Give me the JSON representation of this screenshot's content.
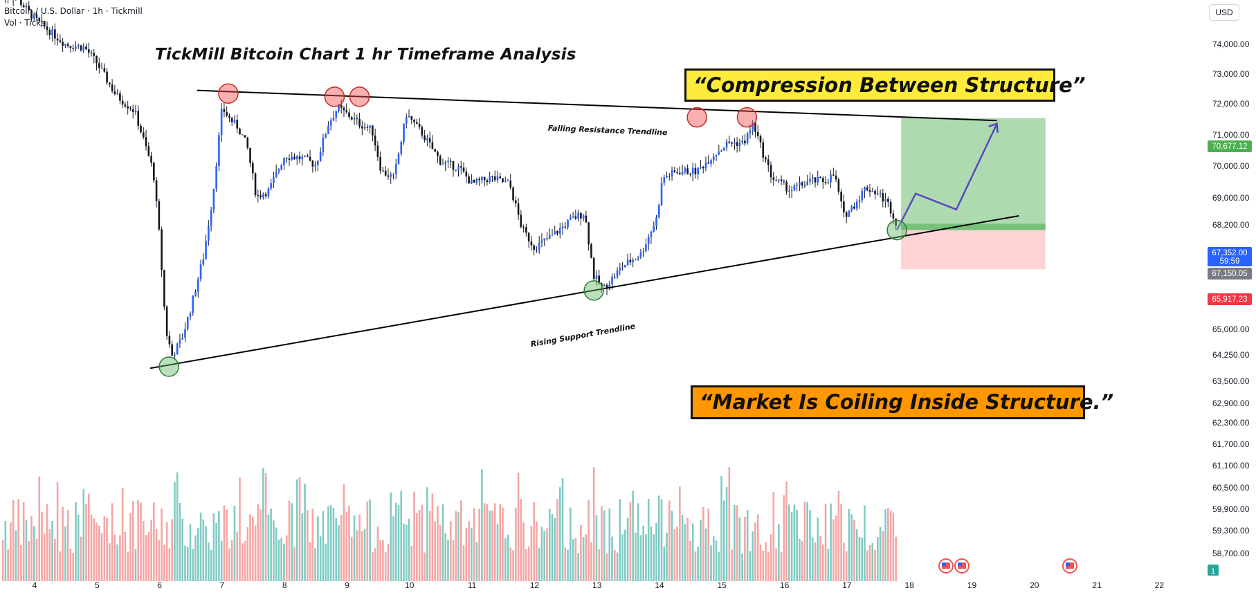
{
  "header": {
    "symbol_line": "Bitcoin / U.S. Dollar · 1h · Tickmill",
    "volume_line": "Vol · Ticks"
  },
  "currency_button": "USD",
  "annotations": {
    "title": "TickMill Bitcoin Chart 1 hr Timeframe Analysis",
    "box_top": "“Compression Between Structure”",
    "box_bottom": "“Market Is Coiling Inside Structure.”",
    "resistance_label": "Falling Resistance Trendline",
    "support_label": "Rising Support Trendline"
  },
  "price_badges": {
    "target": {
      "label": "70,677.12",
      "color": "#4caf50"
    },
    "current": {
      "label": "67,352.00",
      "sub": "59:59",
      "color": "#2962ff"
    },
    "entry": {
      "label": "67,150.05",
      "color": "#787b86"
    },
    "stop": {
      "label": "65,917.23",
      "color": "#f23645"
    }
  },
  "axis_footer_badge": "1",
  "colors": {
    "up": "#26a69a",
    "down": "#ef5350",
    "candle_body": "#131722",
    "target_zone": "#a5d6a7",
    "stop_zone": "#ffcdd2",
    "projection": "#5b45c2"
  },
  "chart_data": {
    "type": "candlestick",
    "title": "TickMill Bitcoin Chart 1 hr Timeframe Analysis",
    "y_ticks": [
      {
        "label": "74,000.00",
        "value": 74000
      },
      {
        "label": "73,000.00",
        "value": 73000
      },
      {
        "label": "72,000.00",
        "value": 72000
      },
      {
        "label": "71,000.00",
        "value": 71000
      },
      {
        "label": "70,000.00",
        "value": 70000
      },
      {
        "label": "69,000.00",
        "value": 69000
      },
      {
        "label": "68,200.00",
        "value": 68200
      },
      {
        "label": "65,000.00",
        "value": 65000
      },
      {
        "label": "64,250.00",
        "value": 64250
      },
      {
        "label": "63,500.00",
        "value": 63500
      },
      {
        "label": "62,900.00",
        "value": 62900
      },
      {
        "label": "62,300.00",
        "value": 62300
      },
      {
        "label": "61,700.00",
        "value": 61700
      },
      {
        "label": "61,100.00",
        "value": 61100
      },
      {
        "label": "60,500.00",
        "value": 60500
      },
      {
        "label": "59,900.00",
        "value": 59900
      },
      {
        "label": "59,300.00",
        "value": 59300
      },
      {
        "label": "58,700.00",
        "value": 58700
      }
    ],
    "x_ticks": [
      {
        "label": "4",
        "day": 4
      },
      {
        "label": "5",
        "day": 5
      },
      {
        "label": "6",
        "day": 6
      },
      {
        "label": "7",
        "day": 7
      },
      {
        "label": "8",
        "day": 8
      },
      {
        "label": "9",
        "day": 9
      },
      {
        "label": "10",
        "day": 10
      },
      {
        "label": "11",
        "day": 11
      },
      {
        "label": "12",
        "day": 12
      },
      {
        "label": "13",
        "day": 13
      },
      {
        "label": "14",
        "day": 14
      },
      {
        "label": "15",
        "day": 15
      },
      {
        "label": "16",
        "day": 16
      },
      {
        "label": "17",
        "day": 17
      },
      {
        "label": "18",
        "day": 18
      },
      {
        "label": "19",
        "day": 19
      },
      {
        "label": "20",
        "day": 20
      },
      {
        "label": "21",
        "day": 21
      },
      {
        "label": "22",
        "day": 22
      }
    ],
    "price_path": [
      [
        3.7,
        74500
      ],
      [
        4.0,
        73800
      ],
      [
        4.5,
        73000
      ],
      [
        4.8,
        72900
      ],
      [
        5.0,
        72400
      ],
      [
        5.3,
        71400
      ],
      [
        5.6,
        70900
      ],
      [
        5.9,
        69000
      ],
      [
        6.0,
        66900
      ],
      [
        6.1,
        64000
      ],
      [
        6.2,
        63200
      ],
      [
        6.35,
        63700
      ],
      [
        6.5,
        64700
      ],
      [
        6.7,
        66300
      ],
      [
        6.85,
        68200
      ],
      [
        7.0,
        71000
      ],
      [
        7.1,
        70700
      ],
      [
        7.25,
        70400
      ],
      [
        7.4,
        69800
      ],
      [
        7.55,
        68200
      ],
      [
        7.75,
        68400
      ],
      [
        8.0,
        69500
      ],
      [
        8.3,
        69400
      ],
      [
        8.5,
        69200
      ],
      [
        8.7,
        70500
      ],
      [
        8.85,
        71000
      ],
      [
        9.0,
        70800
      ],
      [
        9.2,
        70500
      ],
      [
        9.4,
        70300
      ],
      [
        9.55,
        69000
      ],
      [
        9.75,
        68800
      ],
      [
        9.95,
        70800
      ],
      [
        10.2,
        70200
      ],
      [
        10.5,
        69300
      ],
      [
        10.8,
        69100
      ],
      [
        11.0,
        68600
      ],
      [
        11.3,
        68800
      ],
      [
        11.6,
        68600
      ],
      [
        11.8,
        67200
      ],
      [
        12.0,
        66600
      ],
      [
        12.3,
        67000
      ],
      [
        12.6,
        67500
      ],
      [
        12.8,
        67700
      ],
      [
        12.95,
        65700
      ],
      [
        13.1,
        65300
      ],
      [
        13.4,
        66000
      ],
      [
        13.7,
        66400
      ],
      [
        13.95,
        67500
      ],
      [
        14.05,
        68800
      ],
      [
        14.3,
        69000
      ],
      [
        14.6,
        69000
      ],
      [
        14.85,
        69500
      ],
      [
        15.1,
        69900
      ],
      [
        15.35,
        69900
      ],
      [
        15.5,
        70500
      ],
      [
        15.65,
        69600
      ],
      [
        15.8,
        68800
      ],
      [
        16.1,
        68400
      ],
      [
        16.4,
        68700
      ],
      [
        16.65,
        68700
      ],
      [
        16.8,
        68900
      ],
      [
        16.95,
        67600
      ],
      [
        17.1,
        67900
      ],
      [
        17.3,
        68500
      ],
      [
        17.5,
        68300
      ],
      [
        17.65,
        68000
      ],
      [
        17.75,
        67600
      ],
      [
        17.8,
        67150
      ]
    ],
    "volume_note": "volume histogram beneath price, bars colored by candle direction",
    "trendlines": [
      {
        "name": "Falling Resistance Trendline",
        "from": [
          6.6,
          71550
        ],
        "to": [
          19.4,
          70600
        ]
      },
      {
        "name": "Rising Support Trendline",
        "from": [
          5.85,
          62800
        ],
        "to": [
          19.75,
          67600
        ]
      }
    ],
    "swing_highs": [
      [
        7.1,
        71450
      ],
      [
        8.8,
        71350
      ],
      [
        9.2,
        71350
      ],
      [
        14.6,
        70700
      ],
      [
        15.4,
        70700
      ]
    ],
    "swing_lows": [
      [
        6.15,
        62850
      ],
      [
        12.95,
        65250
      ],
      [
        17.8,
        67150
      ]
    ],
    "position": {
      "entry": 67150.05,
      "target": 70677.12,
      "stop": 65917.23,
      "x_start": 17.8,
      "x_end": 19.9
    },
    "projection": [
      [
        17.8,
        67150
      ],
      [
        18.1,
        68300
      ],
      [
        18.75,
        67800
      ],
      [
        19.4,
        70500
      ]
    ]
  }
}
